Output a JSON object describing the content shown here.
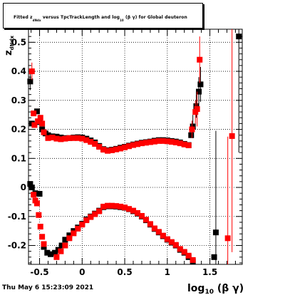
{
  "title": {
    "prefix": "Fitted  z",
    "z_subscript": "dNdx",
    "middle": "  versus TpcTrackLength and log",
    "log_subscript": "10",
    "suffix": " (β γ) for Global deuteron"
  },
  "timestamp": "Thu May  6 15:23:09 2021",
  "chart_data": {
    "type": "scatter",
    "title": "Fitted z_dNdx versus TpcTrackLength and log10(β γ) for Global deuteron",
    "xlabel": "log10(β γ)",
    "ylabel": "z_dNdx",
    "xlim": [
      -0.63,
      1.88
    ],
    "ylim": [
      -0.265,
      0.545
    ],
    "x_ticks": [
      -0.5,
      0,
      0.5,
      1,
      1.5
    ],
    "y_ticks": [
      -0.2,
      -0.1,
      0,
      0.1,
      0.2,
      0.3,
      0.4,
      0.5
    ],
    "y_tick_labels": [
      "-0.2",
      "-0.1",
      "0",
      "0.1",
      "0.2",
      "0.3",
      "0.4",
      "0.5"
    ],
    "x_tick_labels": [
      "-0.5",
      "0",
      "0.5",
      "1",
      "1.5"
    ],
    "grid": true,
    "series": [
      {
        "color": "#000000",
        "marker": "black",
        "points": [
          [
            -0.61,
            0.365,
            0.03
          ],
          [
            -0.59,
            0.22,
            0.02
          ],
          [
            -0.53,
            0.262,
            0.01
          ],
          [
            -0.5,
            0.225,
            0.01
          ],
          [
            -0.47,
            0.2,
            0.005
          ],
          [
            -0.43,
            0.186,
            0.005
          ],
          [
            -0.4,
            0.18,
            0.004
          ],
          [
            -0.35,
            0.176,
            0.003
          ],
          [
            -0.3,
            0.175,
            0.003
          ],
          [
            -0.25,
            0.172,
            0.003
          ],
          [
            -0.2,
            0.17,
            0.003
          ],
          [
            -0.15,
            0.17,
            0.003
          ],
          [
            -0.1,
            0.172,
            0.003
          ],
          [
            -0.05,
            0.173,
            0.003
          ],
          [
            0.0,
            0.172,
            0.003
          ],
          [
            0.05,
            0.168,
            0.003
          ],
          [
            0.1,
            0.162,
            0.003
          ],
          [
            0.15,
            0.155,
            0.003
          ],
          [
            0.2,
            0.143,
            0.003
          ],
          [
            0.25,
            0.132,
            0.003
          ],
          [
            0.3,
            0.128,
            0.003
          ],
          [
            0.35,
            0.13,
            0.003
          ],
          [
            0.4,
            0.133,
            0.003
          ],
          [
            0.45,
            0.137,
            0.003
          ],
          [
            0.5,
            0.14,
            0.003
          ],
          [
            0.55,
            0.144,
            0.003
          ],
          [
            0.6,
            0.148,
            0.003
          ],
          [
            0.65,
            0.151,
            0.003
          ],
          [
            0.7,
            0.154,
            0.003
          ],
          [
            0.75,
            0.156,
            0.003
          ],
          [
            0.8,
            0.158,
            0.003
          ],
          [
            0.85,
            0.161,
            0.003
          ],
          [
            0.9,
            0.163,
            0.003
          ],
          [
            0.95,
            0.163,
            0.003
          ],
          [
            1.0,
            0.162,
            0.003
          ],
          [
            1.05,
            0.16,
            0.003
          ],
          [
            1.1,
            0.158,
            0.003
          ],
          [
            1.15,
            0.155,
            0.004
          ],
          [
            1.2,
            0.15,
            0.005
          ],
          [
            1.25,
            0.146,
            0.008
          ],
          [
            1.28,
            0.18,
            0.02
          ],
          [
            1.3,
            0.21,
            0.04
          ],
          [
            1.34,
            0.28,
            0.04
          ],
          [
            1.37,
            0.33,
            0.05
          ],
          [
            1.39,
            0.355,
            0.06
          ],
          [
            1.84,
            0.52,
            0.4
          ],
          [
            1.57,
            -0.155,
            0.35
          ],
          [
            -0.61,
            0.012,
            0.005
          ],
          [
            -0.59,
            0.0,
            0.005
          ],
          [
            -0.55,
            -0.02,
            0.004
          ],
          [
            -0.5,
            -0.022,
            0.004
          ],
          [
            -0.45,
            -0.205,
            0.004
          ],
          [
            -0.41,
            -0.225,
            0.004
          ],
          [
            -0.37,
            -0.23,
            0.003
          ],
          [
            -0.32,
            -0.225,
            0.003
          ],
          [
            -0.28,
            -0.215,
            0.003
          ],
          [
            -0.24,
            -0.2,
            0.003
          ],
          [
            -0.2,
            -0.18,
            0.003
          ],
          [
            -0.15,
            -0.165,
            0.003
          ],
          [
            -0.1,
            -0.15,
            0.003
          ],
          [
            -0.05,
            -0.138,
            0.003
          ],
          [
            0.0,
            -0.125,
            0.003
          ],
          [
            0.05,
            -0.11,
            0.003
          ],
          [
            0.1,
            -0.1,
            0.003
          ],
          [
            0.15,
            -0.09,
            0.003
          ],
          [
            0.2,
            -0.08,
            0.003
          ],
          [
            0.25,
            -0.068,
            0.003
          ],
          [
            0.3,
            -0.065,
            0.003
          ],
          [
            0.35,
            -0.065,
            0.003
          ],
          [
            0.4,
            -0.066,
            0.003
          ],
          [
            0.45,
            -0.068,
            0.003
          ],
          [
            0.5,
            -0.07,
            0.003
          ],
          [
            0.55,
            -0.075,
            0.003
          ],
          [
            0.6,
            -0.082,
            0.003
          ],
          [
            0.65,
            -0.09,
            0.003
          ],
          [
            0.7,
            -0.1,
            0.003
          ],
          [
            0.75,
            -0.113,
            0.003
          ],
          [
            0.8,
            -0.128,
            0.003
          ],
          [
            0.85,
            -0.143,
            0.003
          ],
          [
            0.9,
            -0.155,
            0.003
          ],
          [
            0.95,
            -0.168,
            0.003
          ],
          [
            1.0,
            -0.18,
            0.003
          ],
          [
            1.05,
            -0.19,
            0.003
          ],
          [
            1.1,
            -0.2,
            0.003
          ],
          [
            1.15,
            -0.215,
            0.004
          ],
          [
            1.2,
            -0.225,
            0.004
          ],
          [
            1.25,
            -0.24,
            0.005
          ],
          [
            1.3,
            -0.255,
            0.006
          ],
          [
            1.55,
            -0.24,
            0.01
          ]
        ]
      },
      {
        "color": "#ff0000",
        "marker": "red",
        "points": [
          [
            -0.59,
            0.4,
            0.03
          ],
          [
            -0.57,
            0.255,
            0.02
          ],
          [
            -0.56,
            0.215,
            0.01
          ],
          [
            -0.52,
            0.228,
            0.01
          ],
          [
            -0.49,
            0.24,
            0.01
          ],
          [
            -0.47,
            0.22,
            0.008
          ],
          [
            -0.45,
            0.19,
            0.005
          ],
          [
            -0.4,
            0.17,
            0.004
          ],
          [
            -0.35,
            0.172,
            0.003
          ],
          [
            -0.3,
            0.168,
            0.003
          ],
          [
            -0.25,
            0.166,
            0.003
          ],
          [
            -0.2,
            0.168,
            0.003
          ],
          [
            -0.15,
            0.17,
            0.003
          ],
          [
            -0.1,
            0.17,
            0.003
          ],
          [
            -0.05,
            0.17,
            0.003
          ],
          [
            0.0,
            0.168,
            0.003
          ],
          [
            0.05,
            0.163,
            0.003
          ],
          [
            0.1,
            0.157,
            0.003
          ],
          [
            0.15,
            0.15,
            0.003
          ],
          [
            0.2,
            0.14,
            0.003
          ],
          [
            0.25,
            0.13,
            0.003
          ],
          [
            0.3,
            0.126,
            0.003
          ],
          [
            0.35,
            0.128,
            0.003
          ],
          [
            0.4,
            0.131,
            0.003
          ],
          [
            0.45,
            0.134,
            0.003
          ],
          [
            0.5,
            0.138,
            0.003
          ],
          [
            0.55,
            0.142,
            0.003
          ],
          [
            0.6,
            0.146,
            0.003
          ],
          [
            0.65,
            0.149,
            0.003
          ],
          [
            0.7,
            0.152,
            0.003
          ],
          [
            0.75,
            0.154,
            0.003
          ],
          [
            0.8,
            0.156,
            0.003
          ],
          [
            0.85,
            0.158,
            0.003
          ],
          [
            0.9,
            0.16,
            0.003
          ],
          [
            0.95,
            0.16,
            0.003
          ],
          [
            1.0,
            0.159,
            0.003
          ],
          [
            1.05,
            0.157,
            0.003
          ],
          [
            1.1,
            0.155,
            0.003
          ],
          [
            1.15,
            0.152,
            0.004
          ],
          [
            1.2,
            0.148,
            0.005
          ],
          [
            1.25,
            0.145,
            0.008
          ],
          [
            1.29,
            0.2,
            0.03
          ],
          [
            1.33,
            0.26,
            0.04
          ],
          [
            1.35,
            0.27,
            0.06
          ],
          [
            1.38,
            0.44,
            0.08
          ],
          [
            1.76,
            0.177,
            0.4
          ],
          [
            1.71,
            -0.175,
            0.35
          ],
          [
            -0.57,
            -0.025,
            0.005
          ],
          [
            -0.55,
            -0.045,
            0.005
          ],
          [
            -0.53,
            -0.055,
            0.005
          ],
          [
            -0.51,
            -0.095,
            0.005
          ],
          [
            -0.49,
            -0.135,
            0.005
          ],
          [
            -0.47,
            -0.17,
            0.005
          ],
          [
            -0.45,
            -0.195,
            0.005
          ],
          [
            -0.3,
            -0.24,
            0.005
          ],
          [
            -0.25,
            -0.22,
            0.003
          ],
          [
            -0.2,
            -0.2,
            0.003
          ],
          [
            -0.15,
            -0.175,
            0.003
          ],
          [
            -0.1,
            -0.158,
            0.003
          ],
          [
            -0.05,
            -0.142,
            0.003
          ],
          [
            0.0,
            -0.128,
            0.003
          ],
          [
            0.05,
            -0.113,
            0.003
          ],
          [
            0.1,
            -0.102,
            0.003
          ],
          [
            0.15,
            -0.092,
            0.003
          ],
          [
            0.2,
            -0.082,
            0.003
          ],
          [
            0.25,
            -0.066,
            0.003
          ],
          [
            0.3,
            -0.063,
            0.003
          ],
          [
            0.35,
            -0.063,
            0.003
          ],
          [
            0.4,
            -0.064,
            0.003
          ],
          [
            0.45,
            -0.066,
            0.003
          ],
          [
            0.5,
            -0.069,
            0.003
          ],
          [
            0.55,
            -0.074,
            0.003
          ],
          [
            0.6,
            -0.08,
            0.003
          ],
          [
            0.65,
            -0.088,
            0.003
          ],
          [
            0.7,
            -0.098,
            0.003
          ],
          [
            0.75,
            -0.111,
            0.003
          ],
          [
            0.8,
            -0.126,
            0.003
          ],
          [
            0.85,
            -0.141,
            0.003
          ],
          [
            0.9,
            -0.153,
            0.003
          ],
          [
            0.95,
            -0.166,
            0.003
          ],
          [
            1.0,
            -0.178,
            0.003
          ],
          [
            1.05,
            -0.188,
            0.003
          ],
          [
            1.1,
            -0.198,
            0.003
          ],
          [
            1.15,
            -0.212,
            0.004
          ],
          [
            1.2,
            -0.222,
            0.004
          ],
          [
            1.25,
            -0.235,
            0.005
          ],
          [
            1.3,
            -0.25,
            0.006
          ]
        ]
      }
    ]
  }
}
